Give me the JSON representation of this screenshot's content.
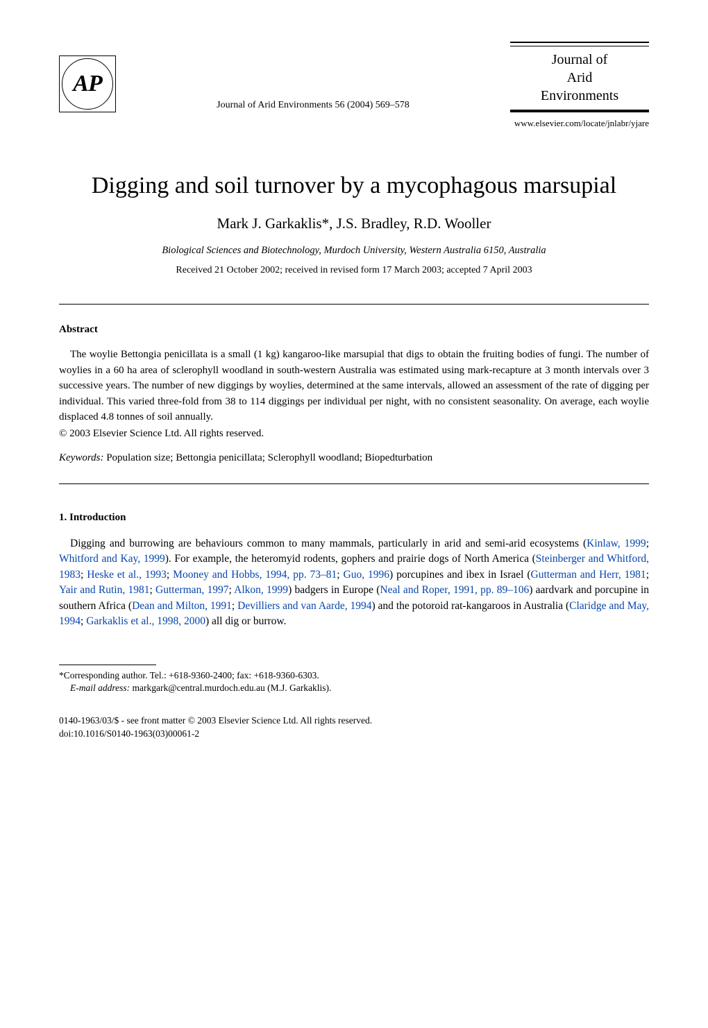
{
  "logo": {
    "text": "AP"
  },
  "journal": {
    "reference": "Journal of Arid Environments 56 (2004) 569–578",
    "title_line1": "Journal of",
    "title_line2": "Arid",
    "title_line3": "Environments",
    "url": "www.elsevier.com/locate/jnlabr/yjare"
  },
  "article": {
    "title": "Digging and soil turnover by a mycophagous marsupial",
    "authors": "Mark J. Garkaklis*, J.S. Bradley, R.D. Wooller",
    "affiliation": "Biological Sciences and Biotechnology, Murdoch University, Western Australia 6150, Australia",
    "dates": "Received 21 October 2002; received in revised form 17 March 2003; accepted 7 April 2003"
  },
  "abstract": {
    "heading": "Abstract",
    "text": "The woylie Bettongia penicillata is a small (1 kg) kangaroo-like marsupial that digs to obtain the fruiting bodies of fungi. The number of woylies in a 60 ha area of sclerophyll woodland in south-western Australia was estimated using mark-recapture at 3 month intervals over 3 successive years. The number of new diggings by woylies, determined at the same intervals, allowed an assessment of the rate of digging per individual. This varied three-fold from 38 to 114 diggings per individual per night, with no consistent seasonality. On average, each woylie displaced 4.8 tonnes of soil annually.",
    "copyright": "© 2003 Elsevier Science Ltd. All rights reserved."
  },
  "keywords": {
    "label": "Keywords:",
    "text": " Population size; Bettongia penicillata; Sclerophyll woodland; Biopedturbation"
  },
  "introduction": {
    "heading": "1. Introduction",
    "text_parts": {
      "p1": "Digging and burrowing are behaviours common to many mammals, particularly in arid and semi-arid ecosystems (",
      "c1": "Kinlaw, 1999",
      "p2": "; ",
      "c2": "Whitford and Kay, 1999",
      "p3": "). For example, the heteromyid rodents, gophers and prairie dogs of North America (",
      "c3": "Steinberger and Whitford, 1983",
      "p4": "; ",
      "c4": "Heske et al., 1993",
      "p5": "; ",
      "c5": "Mooney and Hobbs, 1994, pp. 73–81",
      "p6": "; ",
      "c6": "Guo, 1996",
      "p7": ") porcupines and ibex in Israel (",
      "c7": "Gutterman and Herr, 1981",
      "p8": "; ",
      "c8": "Yair and Rutin, 1981",
      "p9": "; ",
      "c9": "Gutterman, 1997",
      "p10": "; ",
      "c10": "Alkon, 1999",
      "p11": ") badgers in Europe (",
      "c11": "Neal and Roper, 1991, pp. 89–106",
      "p12": ") aardvark and porcupine in southern Africa (",
      "c12": "Dean and Milton, 1991",
      "p13": "; ",
      "c13": "Devilliers and van Aarde, 1994",
      "p14": ") and the potoroid rat-kangaroos in Australia (",
      "c14": "Claridge and May, 1994",
      "p15": "; ",
      "c15": "Garkaklis et al., 1998, 2000",
      "p16": ") all dig or burrow."
    }
  },
  "footnote": {
    "corresponding": "*Corresponding author. Tel.: +618-9360-2400; fax: +618-9360-6303.",
    "email_label": "E-mail address:",
    "email": " markgark@central.murdoch.edu.au (M.J. Garkaklis)."
  },
  "footer": {
    "line1": "0140-1963/03/$ - see front matter © 2003 Elsevier Science Ltd. All rights reserved.",
    "line2": "doi:10.1016/S0140-1963(03)00061-2"
  },
  "colors": {
    "text": "#000000",
    "background": "#ffffff",
    "citation": "#0645ad"
  },
  "typography": {
    "body_font": "Georgia, Times New Roman, serif",
    "title_fontsize": 34,
    "authors_fontsize": 21,
    "body_fontsize": 15.5,
    "footnote_fontsize": 13.5
  }
}
